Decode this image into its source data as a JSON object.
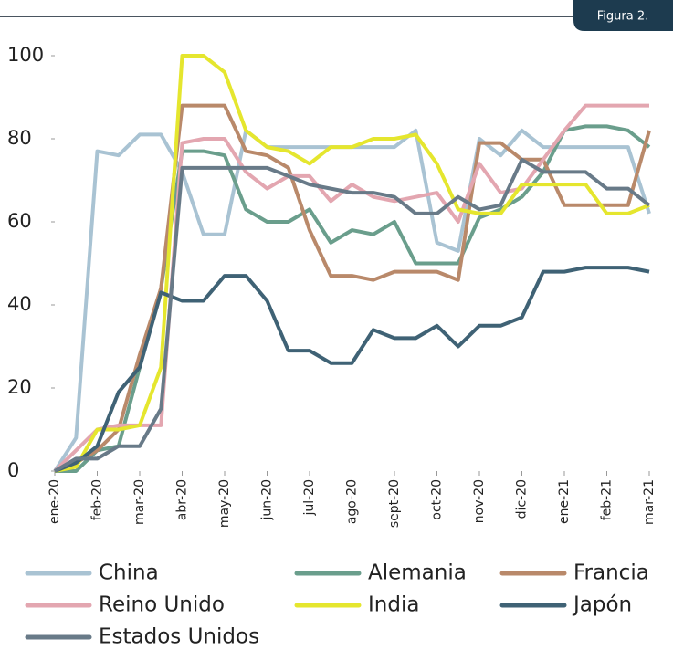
{
  "chart_data": {
    "type": "line",
    "tag": "Figura 2.",
    "categories": [
      "ene-20",
      null,
      "feb-20",
      null,
      "mar-20",
      null,
      "abr-20",
      null,
      "may-20",
      null,
      "jun-20",
      null,
      "jul-20",
      null,
      "ago-20",
      null,
      "sept-20",
      null,
      "oct-20",
      null,
      "nov-20",
      null,
      "dic-20",
      null,
      "ene-21",
      null,
      "feb-21",
      null,
      "mar-21"
    ],
    "series": [
      {
        "name": "China",
        "color": "#a9c3d3",
        "values": [
          0,
          8,
          77,
          76,
          81,
          81,
          72,
          57,
          57,
          82,
          78,
          78,
          78,
          78,
          78,
          78,
          78,
          82,
          55,
          53,
          80,
          76,
          82,
          78,
          78,
          78,
          78,
          78,
          62
        ]
      },
      {
        "name": "Alemania",
        "color": "#6a9e8c",
        "values": [
          0,
          0,
          5,
          6,
          25,
          44,
          77,
          77,
          76,
          63,
          60,
          60,
          63,
          55,
          58,
          57,
          60,
          50,
          50,
          50,
          61,
          63,
          66,
          72,
          82,
          83,
          83,
          82,
          78
        ]
      },
      {
        "name": "Francia",
        "color": "#b9896a",
        "values": [
          0,
          2,
          5,
          10,
          28,
          44,
          88,
          88,
          88,
          77,
          76,
          73,
          58,
          47,
          47,
          46,
          48,
          48,
          48,
          46,
          79,
          79,
          75,
          75,
          64,
          64,
          64,
          64,
          82
        ]
      },
      {
        "name": "Reino Unido",
        "color": "#e3a6b0",
        "values": [
          0,
          5,
          10,
          11,
          11,
          11,
          79,
          80,
          80,
          72,
          68,
          71,
          71,
          65,
          69,
          66,
          65,
          66,
          67,
          60,
          74,
          67,
          68,
          75,
          82,
          88,
          88,
          88,
          88
        ]
      },
      {
        "name": "India",
        "color": "#e5e62e",
        "values": [
          0,
          1,
          10,
          10,
          11,
          25,
          100,
          100,
          96,
          82,
          78,
          77,
          74,
          78,
          78,
          80,
          80,
          81,
          74,
          63,
          62,
          62,
          69,
          69,
          69,
          69,
          62,
          62,
          64
        ]
      },
      {
        "name": "Japón",
        "color": "#3f6275",
        "values": [
          0,
          2,
          6,
          19,
          25,
          43,
          41,
          41,
          47,
          47,
          41,
          29,
          29,
          26,
          26,
          34,
          32,
          32,
          35,
          30,
          35,
          35,
          37,
          48,
          48,
          49,
          49,
          49,
          48
        ]
      },
      {
        "name": "Estados Unidos",
        "color": "#687a88",
        "values": [
          0,
          3,
          3,
          6,
          6,
          15,
          73,
          73,
          73,
          73,
          73,
          71,
          69,
          68,
          67,
          67,
          66,
          62,
          62,
          66,
          63,
          64,
          75,
          72,
          72,
          72,
          68,
          68,
          64
        ]
      }
    ],
    "ylim": [
      0,
      100
    ],
    "yticks": [
      0,
      20,
      40,
      60,
      80,
      100
    ],
    "legend": "bottom"
  }
}
